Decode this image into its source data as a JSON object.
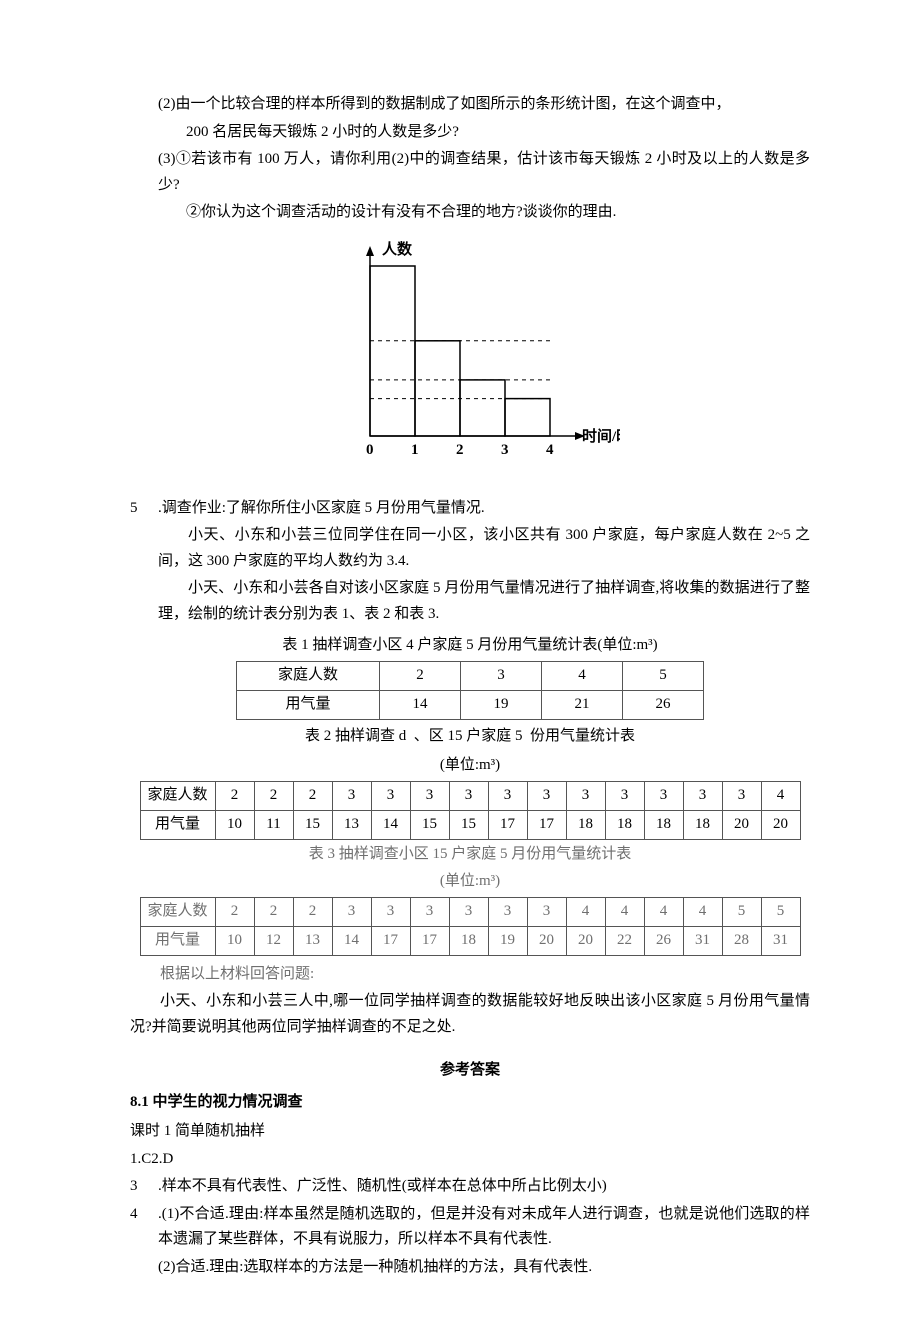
{
  "colors": {
    "text": "#000000",
    "gray_text": "#6f6f6f",
    "border": "#555555",
    "bg": "#ffffff",
    "chart_stroke": "#000000"
  },
  "top_section": {
    "line2": "(2)由一个比较合理的样本所得到的数据制成了如图所示的条形统计图，在这个调查中，",
    "line2b": "200 名居民每天锻炼 2 小时的人数是多少?",
    "line3": "(3)①若该市有 100 万人，请你利用(2)中的调查结果，估计该市每天锻炼 2 小时及以上的人数是多少?",
    "line3b": "②你认为这个调查活动的设计有没有不合理的地方?谈谈你的理由."
  },
  "chart": {
    "type": "bar",
    "x_label": "时间/时",
    "y_label": "人数",
    "x_ticks": [
      "0",
      "1",
      "2",
      "3",
      "4"
    ],
    "bars": [
      {
        "x": 0,
        "height_ratio": 1.0
      },
      {
        "x": 1,
        "height_ratio": 0.56
      },
      {
        "x": 2,
        "height_ratio": 0.33
      },
      {
        "x": 3,
        "height_ratio": 0.22
      }
    ],
    "dashed_guides": [
      0.56,
      0.33,
      0.22
    ],
    "stroke": "#000000",
    "stroke_width": 1.5,
    "bar_fill": "none"
  },
  "q5": {
    "num": "5",
    "dot": ".",
    "title": "调查作业:了解你所住小区家庭 5 月份用气量情况.",
    "p1": "小天、小东和小芸三位同学住在同一小区，该小区共有 300 户家庭，每户家庭人数在 2~5 之间，这 300 户家庭的平均人数约为 3.4.",
    "p2": "小天、小东和小芸各自对该小区家庭 5 月份用气量情况进行了抽样调查,将收集的数据进行了整理，绘制的统计表分别为表 1、表 2 和表 3.",
    "t1_caption": "表 1 抽样调查小区 4 户家庭 5 月份用气量统计表(单位:m³)",
    "t2_caption_a": "表 2 抽样调查 d",
    "t2_caption_b": "、区 15 户家庭 5",
    "t2_caption_c": "份用气量统计表",
    "t2_unit": "(单位:m³)",
    "t3_caption": "表 3   抽样调查小区 15 户家庭 5 月份用气量统计表",
    "t3_unit": "(单位:m³)",
    "t1": {
      "row_labels": [
        "家庭人数",
        "用气量"
      ],
      "cols": [
        "2",
        "3",
        "4",
        "5"
      ],
      "vals": [
        "14",
        "19",
        "21",
        "26"
      ]
    },
    "t2": {
      "row_labels": [
        "家庭人数",
        "用气量"
      ],
      "r1": [
        "2",
        "2",
        "2",
        "3",
        "3",
        "3",
        "3",
        "3",
        "3",
        "3",
        "3",
        "3",
        "3",
        "3",
        "4"
      ],
      "r2": [
        "10",
        "11",
        "15",
        "13",
        "14",
        "15",
        "15",
        "17",
        "17",
        "18",
        "18",
        "18",
        "18",
        "20",
        "20"
      ]
    },
    "t3": {
      "row_labels": [
        "家庭人数",
        "用气量"
      ],
      "r1": [
        "2",
        "2",
        "2",
        "3",
        "3",
        "3",
        "3",
        "3",
        "3",
        "4",
        "4",
        "4",
        "4",
        "5",
        "5"
      ],
      "r2": [
        "10",
        "12",
        "13",
        "14",
        "17",
        "17",
        "18",
        "19",
        "20",
        "20",
        "22",
        "26",
        "31",
        "28",
        "31"
      ]
    },
    "followup": "根据以上材料回答问题:",
    "question": "小天、小东和小芸三人中,哪一位同学抽样调查的数据能较好地反映出该小区家庭 5 月份用气量情况?并简要说明其他两位同学抽样调查的不足之处."
  },
  "answers": {
    "title": "参考答案",
    "sec": "8.1 中学生的视力情况调查",
    "sub": "课时 1 简单随机抽样",
    "l1": "1.C2.D",
    "n3": "3",
    "a3": "样本不具有代表性、广泛性、随机性(或样本在总体中所占比例太小)",
    "n4": "4",
    "a4_1": "(1)不合适.理由:样本虽然是随机选取的，但是并没有对未成年人进行调查，也就是说他们选取的样本遗漏了某些群体，不具有说服力，所以样本不具有代表性.",
    "a4_2": "(2)合适.理由:选取样本的方法是一种随机抽样的方法，具有代表性."
  }
}
